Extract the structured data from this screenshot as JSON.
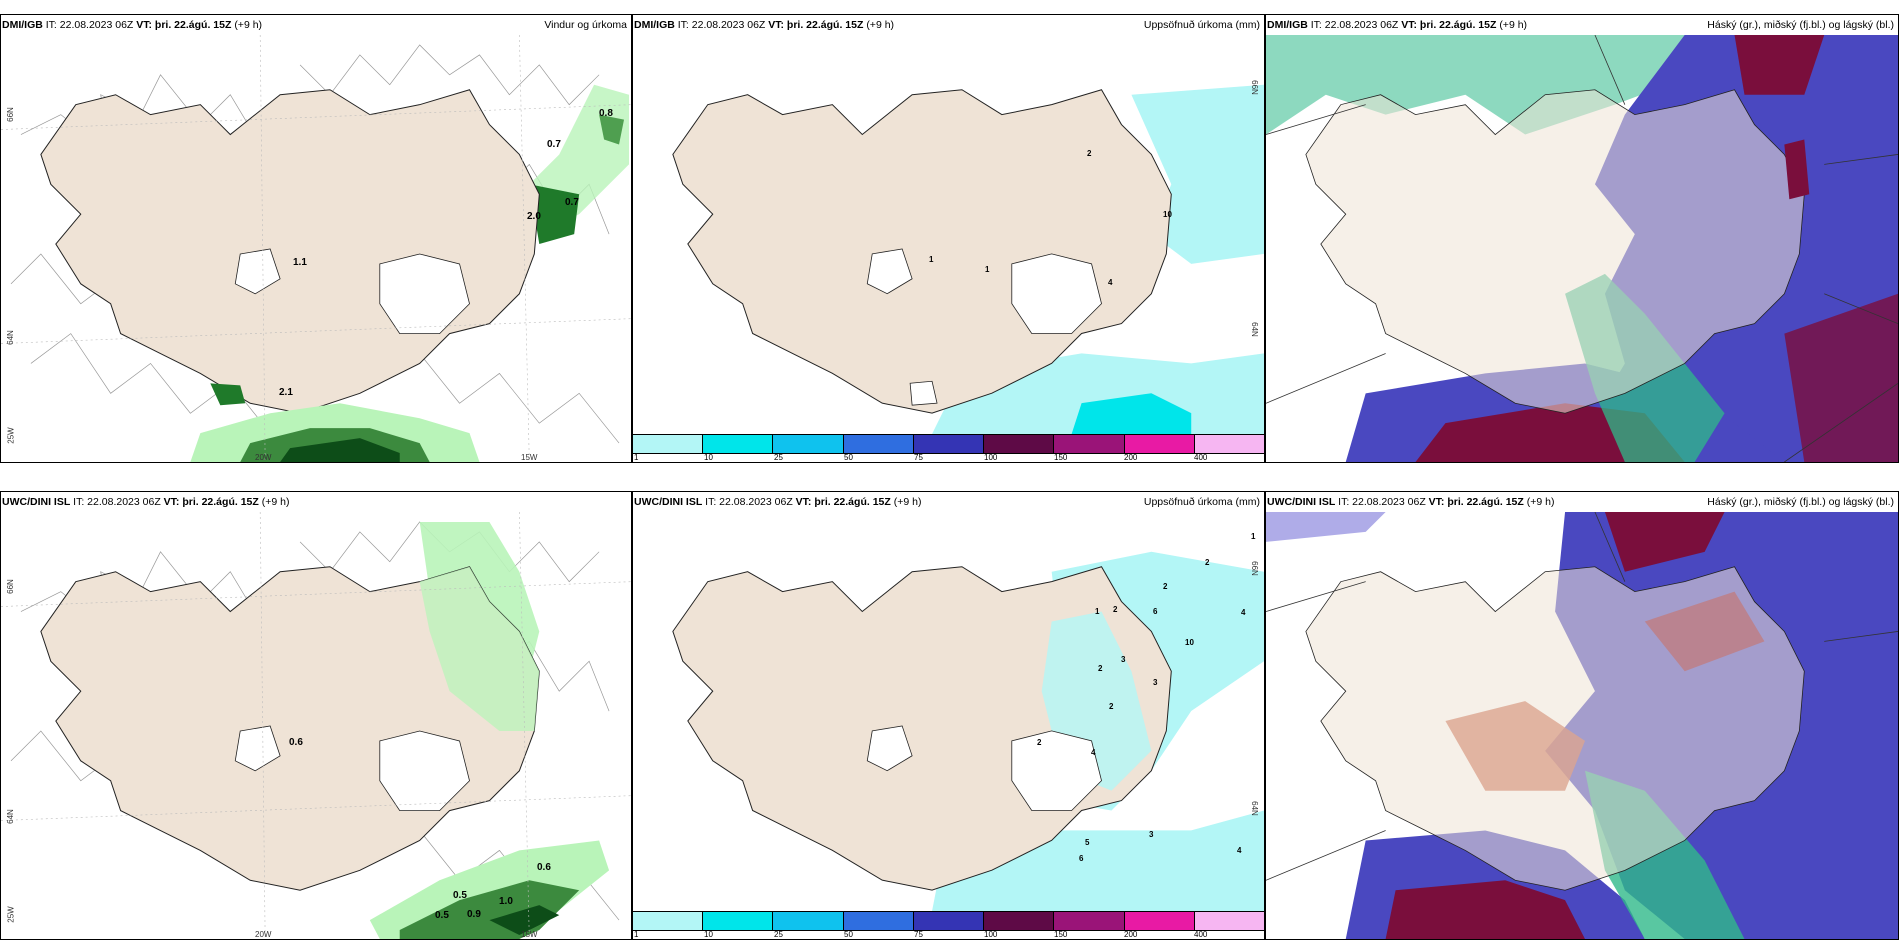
{
  "panels": [
    {
      "id": "p1",
      "model": "DMI/IGB",
      "it": "IT: 22.08.2023 06Z",
      "vt": "VT: þri. 22.ágú. 15Z",
      "lead": "(+9 h)",
      "title": "Vindur og úrkoma",
      "axes": {
        "lat_top": "66N",
        "lat_mid": "64N",
        "lon_left": "25W",
        "lon_mid": "20W",
        "lon_right": "15W"
      },
      "labels": [
        "0.8",
        "0.7",
        "0.7",
        "2.0",
        "1.1",
        "2.1"
      ]
    },
    {
      "id": "p2",
      "model": "DMI/IGB",
      "it": "IT: 22.08.2023 06Z",
      "vt": "VT: þri. 22.ágú. 15Z",
      "lead": "(+9 h)",
      "title": "Uppsöfnuð úrkoma (mm)",
      "axes": {
        "lat_top": "66N",
        "lat_mid": "64N"
      },
      "labels": [
        "2",
        "10",
        "1",
        "1",
        "4"
      ]
    },
    {
      "id": "p3",
      "model": "DMI/IGB",
      "it": "IT: 22.08.2023 06Z",
      "vt": "VT: þri. 22.ágú. 15Z",
      "lead": "(+9 h)",
      "title": "Háský (gr.), miðský (fj.bl.) og lágský (bl.)",
      "labels": []
    },
    {
      "id": "p4",
      "model": "UWC/DINI ISL",
      "it": "IT: 22.08.2023 06Z",
      "vt": "VT: þri. 22.ágú. 15Z",
      "lead": "(+9 h)",
      "title": "",
      "axes": {
        "lat_top": "66N",
        "lat_mid": "64N",
        "lon_left": "25W",
        "lon_mid": "20W",
        "lon_right": "15W"
      },
      "labels": [
        "0.6",
        "0.6",
        "0.5",
        "0.9",
        "1.0",
        "0.5"
      ]
    },
    {
      "id": "p5",
      "model": "UWC/DINI ISL",
      "it": "IT: 22.08.2023 06Z",
      "vt": "VT: þri. 22.ágú. 15Z",
      "lead": "(+9 h)",
      "title": "Uppsöfnuð úrkoma (mm)",
      "axes": {
        "lat_top": "66N",
        "lat_mid": "64N"
      },
      "labels": [
        "1",
        "2",
        "2",
        "1",
        "2",
        "6",
        "4",
        "10",
        "3",
        "2",
        "3",
        "2",
        "4",
        "5",
        "3",
        "6",
        "4",
        "2"
      ]
    },
    {
      "id": "p6",
      "model": "UWC/DINI ISL",
      "it": "IT: 22.08.2023 06Z",
      "vt": "VT: þri. 22.ágú. 15Z",
      "lead": "(+9 h)",
      "title": "Háský (gr.), miðský (fj.bl.) og lágský (bl.)",
      "labels": []
    }
  ],
  "colorbar": {
    "ticks": [
      "1",
      "10",
      "25",
      "50",
      "75",
      "100",
      "150",
      "200",
      "400"
    ],
    "colors": [
      "#b3f6f6",
      "#00e5ea",
      "#0fc2ee",
      "#2f6ee0",
      "#3434b4",
      "#5e0a46",
      "#9a1478",
      "#e81aa4",
      "#f6b6f2"
    ]
  },
  "colors": {
    "land": "#efe3d6",
    "ice": "#ffffff",
    "precip_light": "#b9f4b9",
    "precip_dark": "#1f7a2a",
    "rain_cyan": "#b3f6f6",
    "cloud_high": "#4a48c0",
    "cloud_mid": "#7a0e3c",
    "cloud_low": "#2fb98a"
  }
}
